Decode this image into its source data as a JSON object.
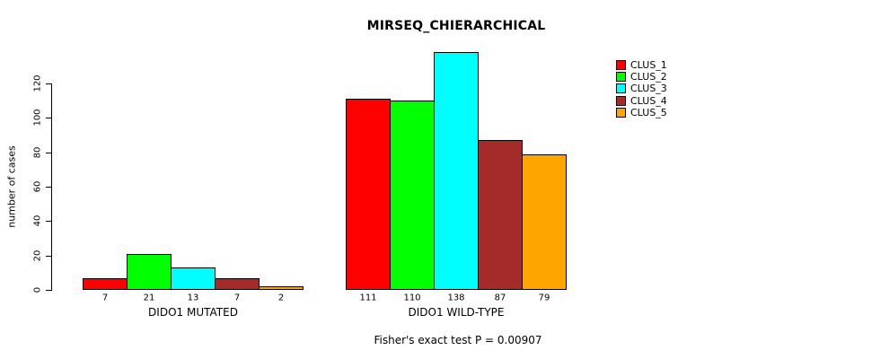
{
  "title": "MIRSEQ_CHIERARCHICAL",
  "footer": "Fisher's exact test P = 0.00907",
  "y_axis": {
    "label": "number of cases",
    "tick_labels": [
      "0",
      "20",
      "40",
      "60",
      "80",
      "100",
      "120"
    ]
  },
  "x_axis": {
    "group_labels": [
      "DIDO1 MUTATED",
      "DIDO1 WILD-TYPE"
    ]
  },
  "legend": {
    "entries": [
      {
        "label": "CLUS_1",
        "color": "#FF0000"
      },
      {
        "label": "CLUS_2",
        "color": "#00FF00"
      },
      {
        "label": "CLUS_3",
        "color": "#00FFFF"
      },
      {
        "label": "CLUS_4",
        "color": "#A52A2A"
      },
      {
        "label": "CLUS_5",
        "color": "#FFA500"
      }
    ]
  },
  "chart_data": {
    "type": "bar",
    "title": "MIRSEQ_CHIERARCHICAL",
    "xlabel": "",
    "ylabel": "number of cases",
    "ylim": [
      0,
      138
    ],
    "yticks": [
      0,
      20,
      40,
      60,
      80,
      100,
      120
    ],
    "categories": [
      "DIDO1 MUTATED",
      "DIDO1 WILD-TYPE"
    ],
    "series": [
      {
        "name": "CLUS_1",
        "color": "#FF0000",
        "values": [
          7,
          111
        ]
      },
      {
        "name": "CLUS_2",
        "color": "#00FF00",
        "values": [
          21,
          110
        ]
      },
      {
        "name": "CLUS_3",
        "color": "#00FFFF",
        "values": [
          13,
          138
        ]
      },
      {
        "name": "CLUS_4",
        "color": "#A52A2A",
        "values": [
          7,
          87
        ]
      },
      {
        "name": "CLUS_5",
        "color": "#FFA500",
        "values": [
          2,
          79
        ]
      }
    ],
    "bar_value_labels": [
      [
        7,
        21,
        13,
        7,
        2
      ],
      [
        111,
        110,
        138,
        87,
        79
      ]
    ],
    "legend_entries": [
      "CLUS_1",
      "CLUS_2",
      "CLUS_3",
      "CLUS_4",
      "CLUS_5"
    ],
    "legend_position": "top-right",
    "grid": false,
    "annotation": "Fisher's exact test P = 0.00907"
  }
}
